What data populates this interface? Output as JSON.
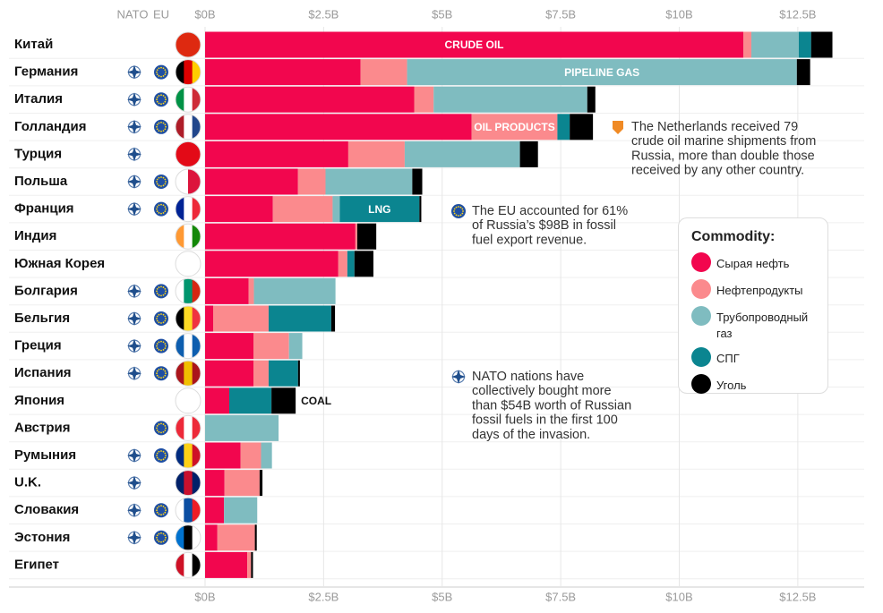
{
  "chart_data": {
    "type": "stacked_bar_horizontal",
    "column_headers": [
      "NATO",
      "EU"
    ],
    "categories": [
      "Китай",
      "Германия",
      "Италия",
      "Голландия",
      "Турция",
      "Польша",
      "Франция",
      "Индия",
      "Южная Корея",
      "Болгария",
      "Бельгия",
      "Греция",
      "Испания",
      "Япония",
      "Австрия",
      "Румыния",
      "U.K.",
      "Словакия",
      "Эстония",
      "Египет"
    ],
    "nato": [
      false,
      true,
      true,
      true,
      true,
      true,
      true,
      false,
      false,
      true,
      true,
      true,
      true,
      false,
      false,
      true,
      true,
      true,
      true,
      false
    ],
    "eu": [
      false,
      true,
      true,
      true,
      false,
      true,
      true,
      false,
      false,
      true,
      true,
      true,
      true,
      false,
      true,
      true,
      false,
      true,
      true,
      false
    ],
    "flag_colors": [
      [
        "#de2910"
      ],
      [
        "#000000",
        "#dd0000",
        "#ffce00"
      ],
      [
        "#009246",
        "#ffffff",
        "#ce2b37"
      ],
      [
        "#ae1c28",
        "#ffffff",
        "#21468b"
      ],
      [
        "#e30a17"
      ],
      [
        "#ffffff",
        "#dc143c"
      ],
      [
        "#002395",
        "#ffffff",
        "#ed2939"
      ],
      [
        "#ff9933",
        "#ffffff",
        "#138808"
      ],
      [
        "#ffffff"
      ],
      [
        "#ffffff",
        "#00966e",
        "#d62612"
      ],
      [
        "#000000",
        "#fdda24",
        "#ef3340"
      ],
      [
        "#0d5eaf",
        "#ffffff",
        "#0d5eaf"
      ],
      [
        "#aa151b",
        "#f1bf00",
        "#aa151b"
      ],
      [
        "#ffffff"
      ],
      [
        "#ed2939",
        "#ffffff",
        "#ed2939"
      ],
      [
        "#002b7f",
        "#fcd116",
        "#ce1126"
      ],
      [
        "#012169",
        "#c8102e",
        "#012169"
      ],
      [
        "#ffffff",
        "#0b4ea2",
        "#ee1c25"
      ],
      [
        "#0072ce",
        "#000000",
        "#ffffff"
      ],
      [
        "#ce1126",
        "#ffffff",
        "#000000"
      ]
    ],
    "legend_title": "Commodity:",
    "series": [
      {
        "name": "Сырая нефть",
        "color": "#f2064e",
        "values": [
          11.35,
          3.28,
          4.41,
          5.62,
          3.02,
          1.96,
          1.43,
          3.17,
          2.81,
          0.92,
          0.17,
          1.02,
          1.02,
          0.51,
          0,
          0.75,
          0.41,
          0.4,
          0.26,
          0.89
        ],
        "segment_labels": [
          "CRUDE OIL",
          null,
          null,
          null,
          null,
          null,
          null,
          null,
          null,
          null,
          null,
          null,
          null,
          null,
          null,
          null,
          null,
          null,
          null,
          null
        ]
      },
      {
        "name": "Нефтепродукты",
        "color": "#fb8a8d",
        "values": [
          0.17,
          0.98,
          0.41,
          1.81,
          1.19,
          0.58,
          1.26,
          0.04,
          0.19,
          0.11,
          1.17,
          0.75,
          0.32,
          0,
          0,
          0.43,
          0.74,
          0,
          0.79,
          0.08
        ],
        "segment_labels": [
          null,
          null,
          null,
          "OIL PRODUCTS",
          null,
          null,
          null,
          null,
          null,
          null,
          null,
          null,
          null,
          null,
          null,
          null,
          null,
          null,
          null,
          null
        ]
      },
      {
        "name": "Трубопроводный газ",
        "color": "#7fbcc0",
        "values": [
          1.0,
          8.22,
          3.24,
          0,
          2.43,
          1.83,
          0.15,
          0,
          0,
          1.72,
          0,
          0.28,
          0,
          0,
          1.55,
          0.23,
          0,
          0.7,
          0,
          0
        ],
        "segment_labels": [
          null,
          "PIPELINE GAS",
          null,
          null,
          null,
          null,
          null,
          null,
          null,
          null,
          null,
          null,
          null,
          null,
          null,
          null,
          null,
          null,
          null,
          null
        ]
      },
      {
        "name": "СПГ",
        "color": "#0b8590",
        "values": [
          0.26,
          0,
          0,
          0.26,
          0,
          0,
          1.68,
          0,
          0.15,
          0,
          1.32,
          0,
          0.62,
          0.89,
          0,
          0,
          0,
          0,
          0,
          0
        ],
        "segment_labels": [
          null,
          null,
          null,
          null,
          null,
          null,
          "LNG",
          null,
          null,
          null,
          null,
          null,
          null,
          null,
          null,
          null,
          null,
          null,
          null,
          null
        ]
      },
      {
        "name": "Уголь",
        "color": "#000000",
        "values": [
          0.45,
          0.28,
          0.17,
          0.49,
          0.38,
          0.21,
          0.04,
          0.4,
          0.4,
          0,
          0.08,
          0,
          0.04,
          0.51,
          0,
          0,
          0.06,
          0,
          0.04,
          0.04
        ],
        "segment_labels": [
          null,
          null,
          null,
          null,
          null,
          null,
          null,
          null,
          null,
          null,
          null,
          null,
          null,
          "COAL",
          null,
          null,
          null,
          null,
          null,
          null
        ]
      }
    ],
    "xlim": [
      0,
      13.9
    ],
    "xticks": [
      {
        "value": 0,
        "label": "$0B"
      },
      {
        "value": 2.5,
        "label": "$2.5B"
      },
      {
        "value": 5,
        "label": "$5B"
      },
      {
        "value": 7.5,
        "label": "$7.5B"
      },
      {
        "value": 10,
        "label": "$10B"
      },
      {
        "value": 12.5,
        "label": "$12.5B"
      }
    ],
    "grid": true,
    "annotations": [
      {
        "icon": "netherlands",
        "lines": [
          "The Netherlands received 79",
          "crude oil marine shipments from",
          "Russia, more than double those",
          "received by any other country."
        ]
      },
      {
        "icon": "eu",
        "lines": [
          "The EU accounted for 61%",
          "of Russia’s $98B in fossil",
          "fuel export revenue."
        ]
      },
      {
        "icon": "nato",
        "lines": [
          "NATO nations have",
          "collectively bought more",
          "than $54B worth of Russian",
          "fossil fuels in the first 100",
          "days of the invasion."
        ]
      }
    ]
  }
}
